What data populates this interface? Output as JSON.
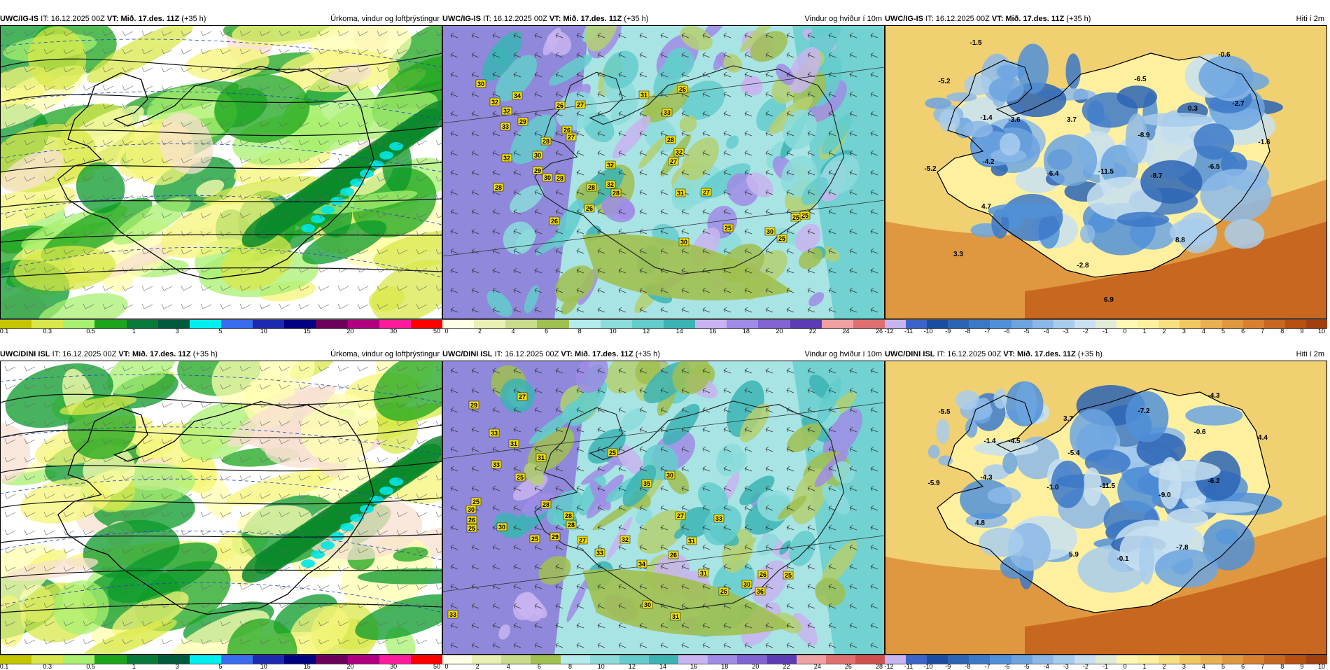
{
  "panels": [
    {
      "id": "p1",
      "model": "UWC/IG-IS",
      "it_label": "IT:",
      "it_value": "16.12.2025 00Z",
      "vt_label": "VT:",
      "vt_value": "Mið. 17.des. 11Z",
      "lead": "(+35 h)",
      "product": "Úrkoma, vindur og loftþrýstingur",
      "theme": "precip",
      "colorbar": {
        "colors": [
          "#c6c600",
          "#d8e84a",
          "#a8f070",
          "#1ca51c",
          "#0a7a3a",
          "#005a3c",
          "#00f0f0",
          "#3a6cf0",
          "#1c2ab0",
          "#000080",
          "#6c005a",
          "#b00080",
          "#ff1c9c",
          "#ff0000"
        ],
        "labels": [
          "0.1",
          "0.3",
          "0.5",
          "1",
          "3",
          "5",
          "10",
          "15",
          "20",
          "30",
          "50"
        ]
      },
      "value_labels": []
    },
    {
      "id": "p2",
      "model": "UWC/IG-IS",
      "it_label": "IT:",
      "it_value": "16.12.2025 00Z",
      "vt_label": "VT:",
      "vt_value": "Mið. 17.des. 11Z",
      "lead": "(+35 h)",
      "product": "Vindur og hviður í 10m",
      "theme": "wind",
      "colorbar": {
        "colors": [
          "#ffffe6",
          "#e8f0b4",
          "#c8dc8c",
          "#a0c050",
          "#b4ecec",
          "#8cdcdc",
          "#64cccc",
          "#3cb4b4",
          "#c8b4f0",
          "#a08ce6",
          "#8064d2",
          "#5a3cb4",
          "#f0a0a0",
          "#e07070"
        ],
        "labels": [
          "0",
          "2",
          "4",
          "6",
          "8",
          "10",
          "12",
          "14",
          "16",
          "18",
          "20",
          "22",
          "24",
          "26"
        ]
      },
      "value_labels": [
        "30",
        "34",
        "32",
        "32",
        "26",
        "27",
        "31",
        "26",
        "33",
        "29",
        "26",
        "28",
        "27",
        "32",
        "30",
        "28",
        "28",
        "32",
        "28",
        "32",
        "29",
        "30",
        "28",
        "26",
        "26",
        "33",
        "28",
        "27",
        "31",
        "32",
        "30",
        "27",
        "30",
        "25",
        "25",
        "25",
        "25"
      ]
    },
    {
      "id": "p3",
      "model": "UWC/IG-IS",
      "it_label": "IT:",
      "it_value": "16.12.2025 00Z",
      "vt_label": "VT:",
      "vt_value": "Mið. 17.des. 11Z",
      "lead": "(+35 h)",
      "product": "Hiti í 2m",
      "theme": "temp",
      "colorbar": {
        "colors": [
          "#c8b4f0",
          "#3c64c8",
          "#1c4ca0",
          "#2c64b4",
          "#3c78c8",
          "#5090d8",
          "#6ca4e0",
          "#8cb8e8",
          "#a8cced",
          "#c8e0f0",
          "#e0ecd8",
          "#fff8b4",
          "#fff0a0",
          "#f8e080",
          "#f0c860",
          "#e8b050",
          "#e09840",
          "#d88030",
          "#c86820",
          "#b85010",
          "#a04010"
        ],
        "labels": [
          "-12",
          "-11",
          "-10",
          "-9",
          "-8",
          "-7",
          "-6",
          "-5",
          "-4",
          "-3",
          "-2",
          "-1",
          "0",
          "1",
          "2",
          "3",
          "4",
          "5",
          "6",
          "7",
          "8",
          "9",
          "10"
        ]
      },
      "value_labels": [
        "-1.5",
        "-0.6",
        "-5.2",
        "-6.5",
        "-2.7",
        "0.3",
        "-3.6",
        "3.7",
        "-1.6",
        "-1.4",
        "-8.9",
        "-4.2",
        "-5.2",
        "-6.4",
        "-11.5",
        "-8.7",
        "-6.5",
        "4.7",
        "8.8",
        "3.3",
        "-2.8",
        "6.9"
      ]
    },
    {
      "id": "p4",
      "model": "UWC/DINI ISL",
      "it_label": "IT:",
      "it_value": "16.12.2025 00Z",
      "vt_label": "VT:",
      "vt_value": "Mið. 17.des. 11Z",
      "lead": "(+35 h)",
      "product": "Úrkoma, vindur og loftþrýstingur",
      "theme": "precip",
      "colorbar": {
        "colors": [
          "#c6c600",
          "#d8e84a",
          "#a8f070",
          "#1ca51c",
          "#0a7a3a",
          "#005a3c",
          "#00f0f0",
          "#3a6cf0",
          "#1c2ab0",
          "#000080",
          "#6c005a",
          "#b00080",
          "#ff1c9c",
          "#ff0000"
        ],
        "labels": [
          "0.1",
          "0.3",
          "0.5",
          "1",
          "3",
          "5",
          "10",
          "15",
          "20",
          "30",
          "50"
        ]
      },
      "value_labels": []
    },
    {
      "id": "p5",
      "model": "UWC/DINI ISL",
      "it_label": "IT:",
      "it_value": "16.12.2025 00Z",
      "vt_label": "VT:",
      "vt_value": "Mið. 17.des. 11Z",
      "lead": "(+35 h)",
      "product": "Vindur og hviður í 10m",
      "theme": "wind",
      "colorbar": {
        "colors": [
          "#ffffe6",
          "#e8f0b4",
          "#c8dc8c",
          "#a0c050",
          "#b4ecec",
          "#8cdcdc",
          "#64cccc",
          "#3cb4b4",
          "#c8b4f0",
          "#a08ce6",
          "#8064d2",
          "#5a3cb4",
          "#f0a0a0",
          "#e07070",
          "#d05050"
        ],
        "labels": [
          "0",
          "2",
          "4",
          "6",
          "8",
          "10",
          "12",
          "14",
          "16",
          "18",
          "20",
          "22",
          "24",
          "26",
          "28"
        ]
      },
      "value_labels": [
        "29",
        "33",
        "27",
        "33",
        "31",
        "31",
        "25",
        "28",
        "30",
        "28",
        "28",
        "29",
        "27",
        "33",
        "32",
        "35",
        "30",
        "27",
        "26",
        "34",
        "31",
        "33",
        "26",
        "31",
        "30",
        "26",
        "36",
        "25",
        "31",
        "30",
        "26",
        "25",
        "25",
        "30",
        "33",
        "25",
        "25"
      ]
    },
    {
      "id": "p6",
      "model": "UWC/DINI ISL",
      "it_label": "IT:",
      "it_value": "16.12.2025 00Z",
      "vt_label": "VT:",
      "vt_value": "Mið. 17.des. 11Z",
      "lead": "(+35 h)",
      "product": "Hiti í 2m",
      "theme": "temp",
      "colorbar": {
        "colors": [
          "#c8b4f0",
          "#3c64c8",
          "#1c4ca0",
          "#2c64b4",
          "#3c78c8",
          "#5090d8",
          "#6ca4e0",
          "#8cb8e8",
          "#a8cced",
          "#c8e0f0",
          "#e0ecd8",
          "#fff8b4",
          "#fff0a0",
          "#f8e080",
          "#f0c860",
          "#e8b050",
          "#e09840",
          "#d88030",
          "#c86820",
          "#b85010",
          "#a04010"
        ],
        "labels": [
          "-12",
          "-11",
          "-10",
          "-9",
          "-8",
          "-7",
          "-6",
          "-5",
          "-4",
          "-3",
          "-2",
          "-1",
          "0",
          "1",
          "2",
          "3",
          "4",
          "5",
          "6",
          "7",
          "8",
          "9",
          "10"
        ]
      },
      "value_labels": [
        "-5.5",
        "-4.3",
        "3.7",
        "-7.2",
        "-4.5",
        "-0.6",
        "4.4",
        "-1.4",
        "-5.4",
        "-4.3",
        "-6.2",
        "-5.9",
        "-1.0",
        "-11.5",
        "-9.0",
        "4.8",
        "5.9",
        "-0.1",
        "-7.8"
      ]
    }
  ]
}
